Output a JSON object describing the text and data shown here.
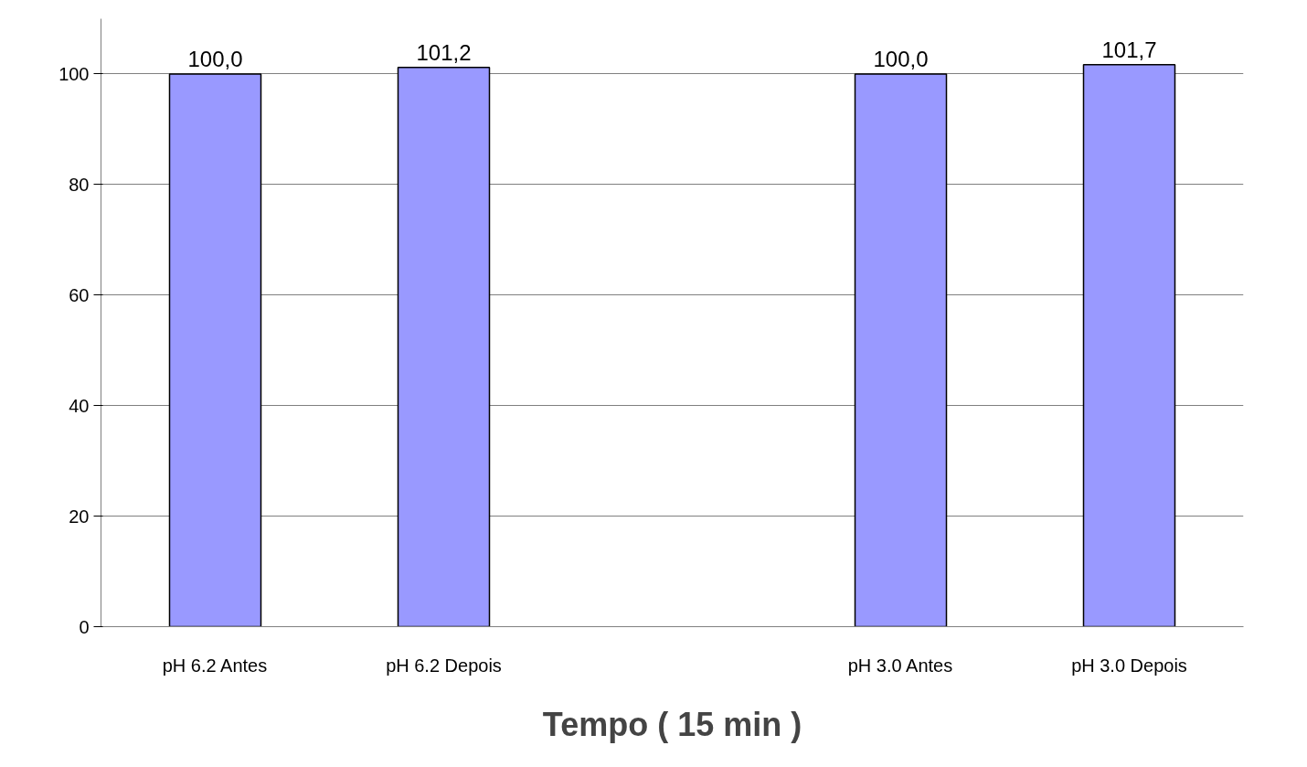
{
  "chart_data": {
    "type": "bar",
    "xlabel": "Tempo ( 15 min )",
    "categories": [
      "pH 6.2 Antes",
      "pH 6.2 Depois",
      null,
      "pH 3.0 Antes",
      "pH 3.0 Depois"
    ],
    "values": [
      100.0,
      101.2,
      null,
      100.0,
      101.7
    ],
    "value_labels": [
      "100,0",
      "101,2",
      null,
      "100,0",
      "101,7"
    ],
    "color": "#9999ff",
    "ylim": [
      0,
      110
    ],
    "yticks": [
      0,
      20,
      40,
      60,
      80,
      100
    ],
    "grid": "y"
  }
}
